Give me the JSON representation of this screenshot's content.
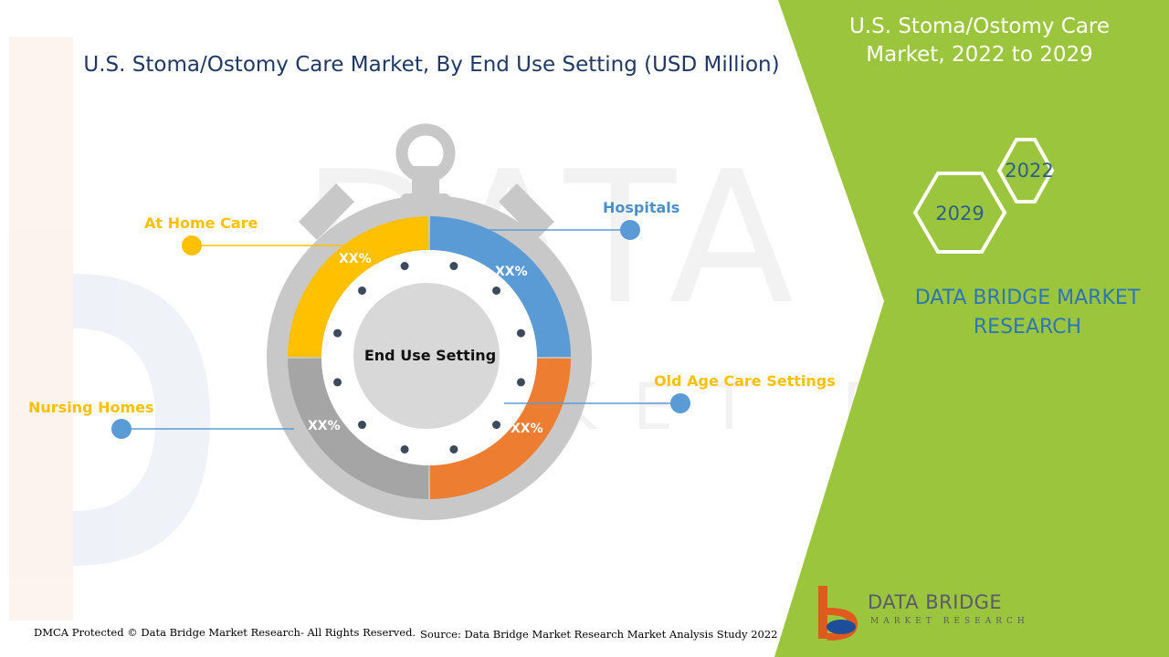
{
  "header": {
    "title": "U.S. Stoma/Ostomy Care Market, By End Use Setting (USD Million)"
  },
  "side_panel": {
    "title_line1": "U.S. Stoma/Ostomy Care",
    "title_line2": "Market, 2022 to 2029",
    "year_start": "2022",
    "year_end": "2029",
    "brand_line1": "DATA BRIDGE MARKET",
    "brand_line2": "RESEARCH"
  },
  "chart_data": {
    "type": "pie",
    "title": "U.S. Stoma/Ostomy Care Market, By End Use Setting (USD Million)",
    "center_label": "End Use Setting",
    "series": [
      {
        "name": "Hospitals",
        "label": "XX%",
        "value": 25,
        "color": "#5b9bd5"
      },
      {
        "name": "Old Age Care Settings",
        "label": "XX%",
        "value": 25,
        "color": "#ed7d31"
      },
      {
        "name": "Nursing Homes",
        "label": "XX%",
        "value": 25,
        "color": "#a5a5a5"
      },
      {
        "name": "At Home Care",
        "label": "XX%",
        "value": 25,
        "color": "#ffc000"
      }
    ]
  },
  "footer": {
    "copyright": "DMCA Protected © Data Bridge Market Research- All Rights Reserved.",
    "source": "Source: Data Bridge Market Research Market Analysis Study 2022"
  },
  "logo": {
    "name": "DATA BRIDGE",
    "tagline": "MARKET RESEARCH"
  },
  "colors": {
    "accent_green": "#9bc53d",
    "title_navy": "#1f3864",
    "brand_blue": "#2e75b6"
  }
}
